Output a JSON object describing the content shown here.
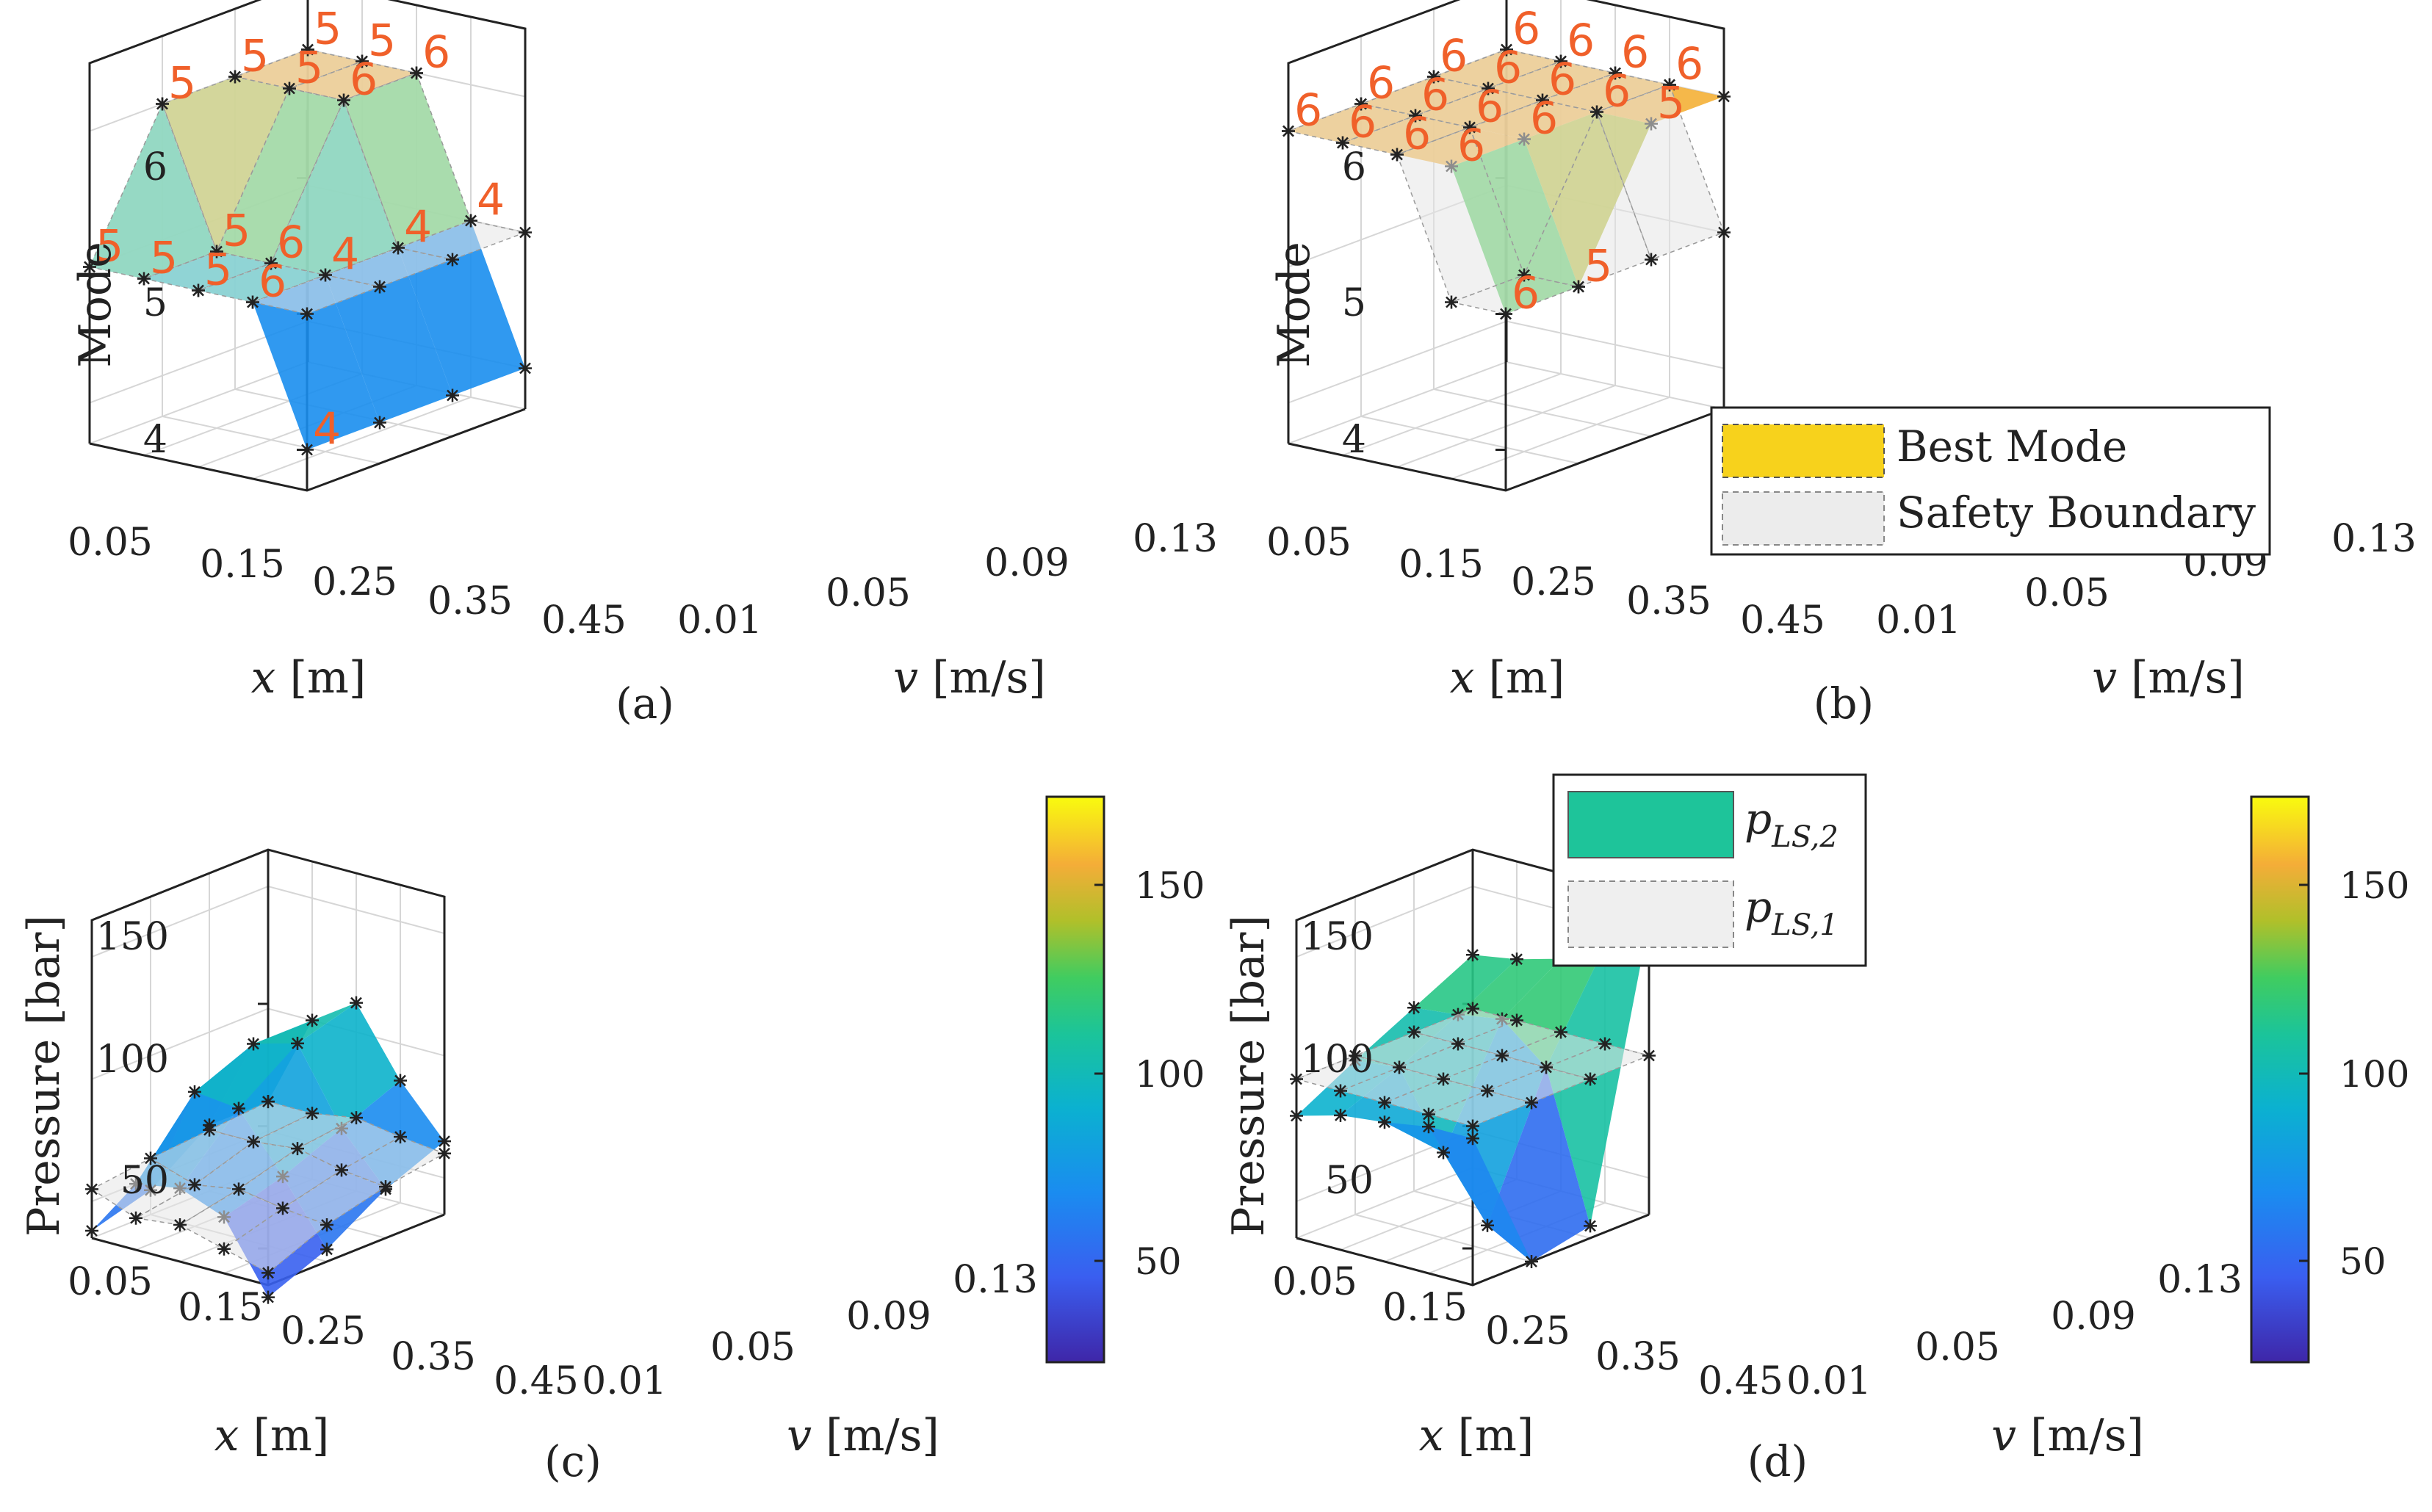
{
  "colors": {
    "surface_low": "#3a2fb8",
    "surface_mid": "#10c3c5",
    "surface_high": "#f5e81a",
    "boundary_fill": "#e8e8e8",
    "mode_label": "#f0602a"
  },
  "chart_data": [
    {
      "type": "surface3d",
      "panel": "a",
      "caption": "(a)",
      "zlabel": "Mode",
      "xlabel": "x",
      "xunit": "[m]",
      "ylabel": "v",
      "yunit": "[m/s]",
      "x_ticks": [
        "0.05",
        "0.15",
        "0.25",
        "0.35",
        "0.45"
      ],
      "y_ticks": [
        "0.01",
        "0.05",
        "0.09",
        "0.13"
      ],
      "z_ticks": [
        "4",
        "5",
        "6"
      ],
      "zlim": [
        3.7,
        6.5
      ],
      "x": [
        0.05,
        0.15,
        0.25,
        0.35,
        0.45
      ],
      "v": [
        0.01,
        0.05,
        0.09,
        0.13
      ],
      "series": [
        {
          "name": "Best Mode",
          "values": [
            [
              5,
              6,
              6,
              6
            ],
            [
              5,
              5,
              6,
              6
            ],
            [
              5,
              5,
              6,
              6
            ],
            [
              5,
              5,
              5,
              5
            ],
            [
              4,
              4,
              4,
              4
            ]
          ]
        },
        {
          "name": "Safety Boundary",
          "values": [
            [
              5,
              6,
              6,
              6
            ],
            [
              5,
              5,
              6,
              6
            ],
            [
              5,
              5,
              6,
              6
            ],
            [
              5,
              5,
              5,
              5
            ],
            [
              5,
              5,
              5,
              5
            ]
          ]
        }
      ],
      "point_labels": [
        "5",
        "5",
        "5",
        "5",
        "5",
        "5",
        "5",
        "5",
        "5",
        "6",
        "6",
        "6",
        "6",
        "4",
        "4",
        "4",
        "4"
      ]
    },
    {
      "type": "surface3d",
      "panel": "b",
      "caption": "(b)",
      "zlabel": "Mode",
      "xlabel": "x",
      "xunit": "[m]",
      "ylabel": "v",
      "yunit": "[m/s]",
      "x_ticks": [
        "0.05",
        "0.15",
        "0.25",
        "0.35",
        "0.45"
      ],
      "y_ticks": [
        "0.01",
        "0.05",
        "0.09",
        "0.13"
      ],
      "z_ticks": [
        "4",
        "5",
        "6"
      ],
      "zlim": [
        3.7,
        6.5
      ],
      "x": [
        0.05,
        0.15,
        0.25,
        0.35,
        0.45
      ],
      "v": [
        0.01,
        0.05,
        0.09,
        0.13
      ],
      "series": [
        {
          "name": "Best Mode",
          "values": [
            [
              6,
              6,
              6,
              6
            ],
            [
              6,
              6,
              6,
              6
            ],
            [
              6,
              6,
              6,
              6
            ],
            [
              6,
              6,
              6,
              6
            ],
            [
              5,
              5,
              6,
              6
            ]
          ]
        },
        {
          "name": "Safety Boundary",
          "values": [
            [
              6,
              6,
              6,
              6
            ],
            [
              6,
              6,
              6,
              6
            ],
            [
              6,
              6,
              6,
              6
            ],
            [
              5,
              5,
              6,
              6
            ],
            [
              5,
              5,
              5,
              5
            ]
          ]
        }
      ],
      "point_labels": [
        "6",
        "6",
        "6",
        "6",
        "6",
        "6",
        "6",
        "6",
        "6",
        "6",
        "6",
        "6",
        "6",
        "6",
        "6",
        "6",
        "6",
        "5",
        "5"
      ],
      "legend": [
        "Best Mode",
        "Safety Boundary"
      ]
    },
    {
      "type": "surface3d",
      "panel": "c",
      "caption": "(c)",
      "zlabel": "Pressure [bar]",
      "xlabel": "x",
      "xunit": "[m]",
      "ylabel": "v",
      "yunit": "[m/s]",
      "x_ticks": [
        "0.05",
        "0.15",
        "0.25",
        "0.35",
        "0.45"
      ],
      "y_ticks": [
        "0.01",
        "0.05",
        "0.09",
        "0.13"
      ],
      "z_ticks": [
        "50",
        "100",
        "150"
      ],
      "zlim": [
        35,
        165
      ],
      "x": [
        0.05,
        0.15,
        0.25,
        0.35,
        0.45
      ],
      "v": [
        0.01,
        0.05,
        0.09,
        0.13
      ],
      "series": [
        {
          "name": "p_LS,2",
          "values": [
            [
              38,
              45,
              62,
              62
            ],
            [
              62,
              90,
              100,
              100
            ],
            [
              65,
              88,
              105,
              112
            ],
            [
              58,
              65,
              75,
              85
            ],
            [
              30,
              40,
              55,
              65
            ]
          ]
        },
        {
          "name": "p_LS,1",
          "values": [
            [
              55,
              58,
              60,
              62
            ],
            [
              48,
              52,
              60,
              62
            ],
            [
              50,
              55,
              62,
              65
            ],
            [
              45,
              52,
              58,
              62
            ],
            [
              40,
              50,
              56,
              60
            ]
          ]
        }
      ],
      "colorbar": {
        "ticks": [
          "50",
          "100",
          "150"
        ],
        "range": [
          25,
          175
        ]
      }
    },
    {
      "type": "surface3d",
      "panel": "d",
      "caption": "(d)",
      "zlabel": "Pressure [bar]",
      "xlabel": "x",
      "xunit": "[m]",
      "ylabel": "v",
      "yunit": "[m/s]",
      "x_ticks": [
        "0.05",
        "0.15",
        "0.25",
        "0.35",
        "0.45"
      ],
      "y_ticks": [
        "0.01",
        "0.05",
        "0.09",
        "0.13"
      ],
      "z_ticks": [
        "50",
        "100",
        "150"
      ],
      "zlim": [
        35,
        165
      ],
      "x": [
        0.05,
        0.15,
        0.25,
        0.35,
        0.45
      ],
      "v": [
        0.01,
        0.05,
        0.09,
        0.13
      ],
      "series": [
        {
          "name": "p_LS,2",
          "values": [
            [
              85,
              98,
              110,
              122
            ],
            [
              90,
              100,
              112,
              125
            ],
            [
              92,
              70,
              115,
              130
            ],
            [
              95,
              45,
              100,
              140
            ],
            [
              95,
              35,
              40,
              155
            ]
          ]
        },
        {
          "name": "p_LS,1",
          "values": [
            [
              100,
              100,
              100,
              100
            ],
            [
              100,
              100,
              100,
              100
            ],
            [
              100,
              100,
              100,
              100
            ],
            [
              100,
              100,
              100,
              100
            ],
            [
              100,
              100,
              100,
              100
            ]
          ]
        }
      ],
      "legend_base": [
        "p",
        "p"
      ],
      "legend_sub": [
        "LS,2",
        "LS,1"
      ],
      "colorbar": {
        "ticks": [
          "50",
          "100",
          "150"
        ],
        "range": [
          25,
          175
        ]
      }
    }
  ]
}
